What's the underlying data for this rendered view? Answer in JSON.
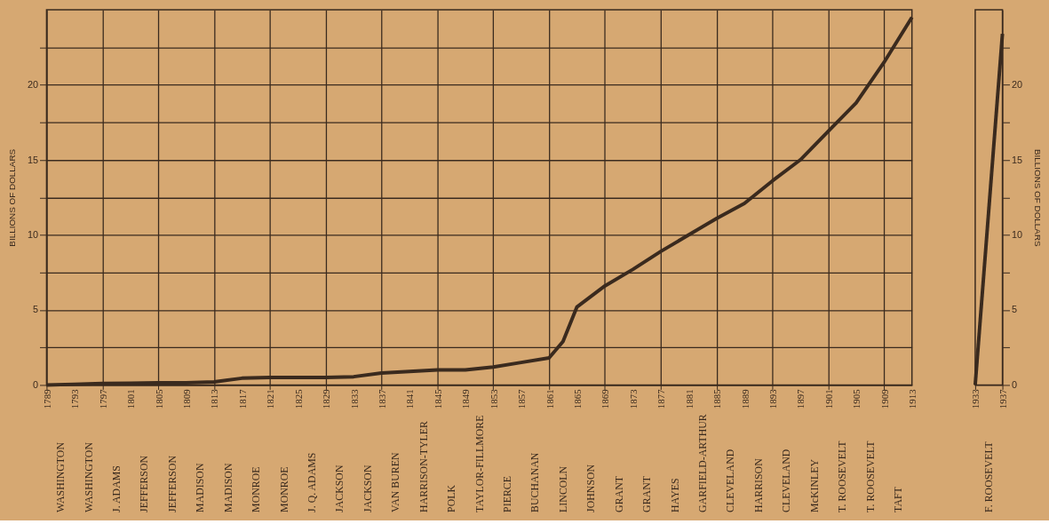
{
  "chart_data": [
    {
      "type": "line",
      "ylabel": "BILLIONS OF DOLLARS",
      "xlim": [
        1789,
        1913
      ],
      "xticks": [
        1789,
        1793,
        1797,
        1801,
        1805,
        1809,
        1813,
        1817,
        1821,
        1825,
        1829,
        1833,
        1837,
        1841,
        1845,
        1849,
        1853,
        1857,
        1861,
        1865,
        1869,
        1873,
        1877,
        1881,
        1885,
        1889,
        1893,
        1897,
        1901,
        1905,
        1909,
        1913
      ],
      "ylim": [
        0,
        25
      ],
      "yticks": [
        0,
        {
          "value": 2.5,
          "label": null
        },
        5,
        {
          "value": 7.5,
          "label": null
        },
        10,
        {
          "value": 12.5,
          "label": null
        },
        15,
        {
          "value": 17.5,
          "label": null
        },
        20,
        {
          "value": 22.5,
          "label": null
        }
      ],
      "grid": true,
      "marker": "none",
      "line_style": "solid",
      "series": [
        {
          "color": "#3a2a1e",
          "x": [
            1789,
            1793,
            1797,
            1801,
            1805,
            1809,
            1813,
            1817,
            1821,
            1825,
            1829,
            1833,
            1837,
            1841,
            1845,
            1849,
            1853,
            1857,
            1861,
            1863,
            1865,
            1869,
            1873,
            1877,
            1881,
            1885,
            1889,
            1893,
            1897,
            1901,
            1905,
            1909,
            1913
          ],
          "values": [
            0,
            0.05,
            0.1,
            0.12,
            0.15,
            0.15,
            0.2,
            0.45,
            0.5,
            0.5,
            0.5,
            0.55,
            0.8,
            0.9,
            1.0,
            1.0,
            1.2,
            1.5,
            1.8,
            2.9,
            5.2,
            6.6,
            7.7,
            8.9,
            10,
            11.1,
            12.1,
            13.6,
            15,
            16.9,
            18.8,
            21.5,
            24.5
          ]
        }
      ],
      "annotations": [
        "WASHINGTON",
        "WASHINGTON",
        "J. ADAMS",
        "JEFFERSON",
        "JEFFERSON",
        "MADISON",
        "MADISON",
        "MONROE",
        "MONROE",
        "J. Q. ADAMS",
        "JACKSON",
        "JACKSON",
        "VAN BUREN",
        "HARRISON-TYLER",
        "POLK",
        "TAYLOR-FILLMORE",
        "PIERCE",
        "BUCHANAN",
        "LINCOLN",
        "JOHNSON",
        "GRANT",
        "GRANT",
        "HAYES",
        "GARFIELD-ARTHUR",
        "CLEVELAND",
        "HARRISON",
        "CLEVELAND",
        "McKINLEY",
        "T. ROOSEVELT",
        "T. ROOSEVELT",
        "TAFT"
      ]
    },
    {
      "type": "line",
      "y2label": "BILLIONS OF DOLLARS",
      "xlim": [
        1933,
        1937
      ],
      "xticks": [
        1933,
        1937
      ],
      "y2lim": [
        0,
        25
      ],
      "y2ticks": [
        0,
        {
          "value": 2.5,
          "label": null
        },
        5,
        {
          "value": 7.5,
          "label": null
        },
        10,
        {
          "value": 12.5,
          "label": null
        },
        15,
        {
          "value": 17.5,
          "label": null
        },
        20,
        {
          "value": 22.5,
          "label": null
        }
      ],
      "marker": "none",
      "line_style": "solid",
      "series": [
        {
          "color": "#3a2a1e",
          "axis": "y2",
          "x": [
            1933,
            1937
          ],
          "values": [
            0,
            23.4
          ]
        }
      ],
      "annotations": [
        "F. ROOSEVELT"
      ]
    }
  ]
}
